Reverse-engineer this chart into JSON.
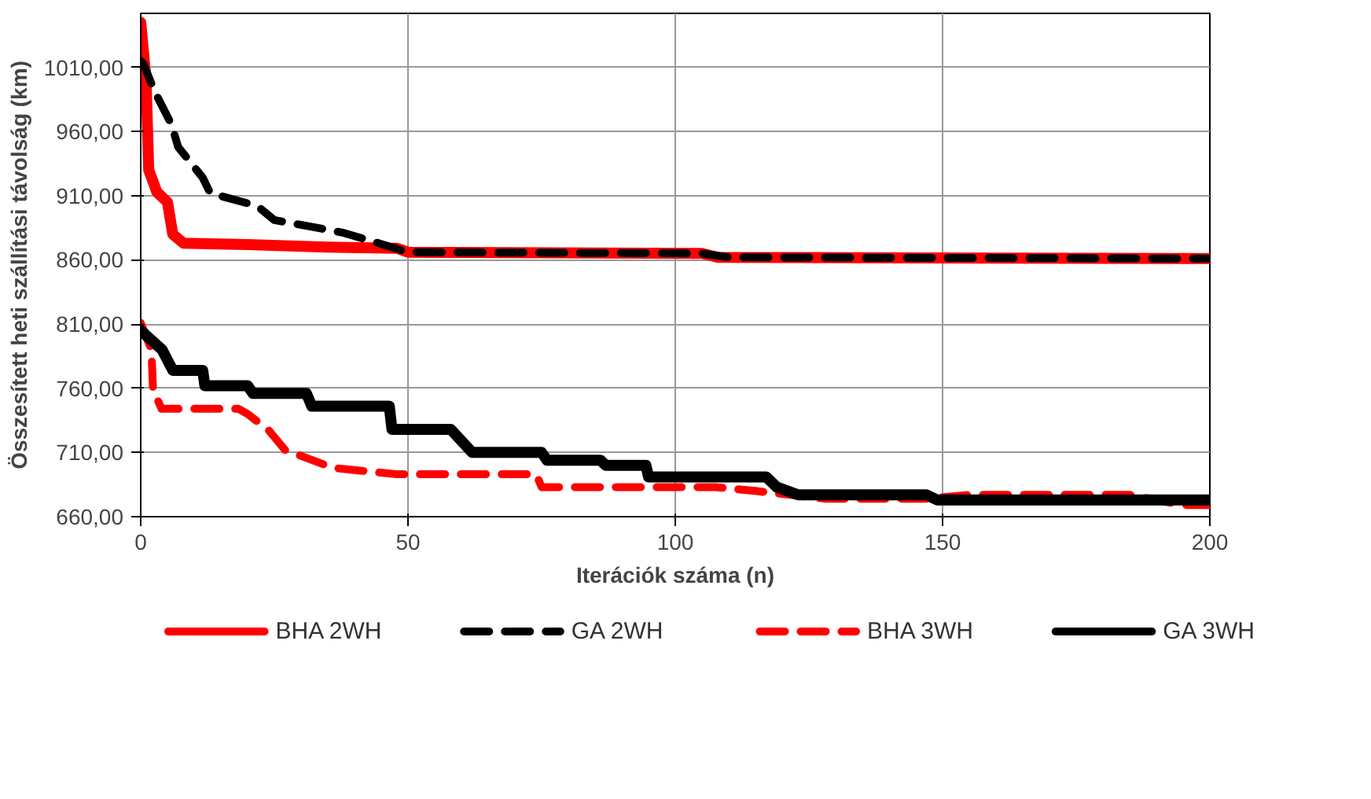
{
  "chart_data": {
    "type": "line",
    "xlabel": "Iterációk száma (n)",
    "ylabel": "Összesített heti szállítási távolság (km)",
    "xlim": [
      0,
      200
    ],
    "xticks": [
      0,
      50,
      100,
      150,
      200
    ],
    "ylim": [
      660,
      1052
    ],
    "yticks": [
      {
        "value": 660,
        "label": "660,00"
      },
      {
        "value": 710,
        "label": "710,00"
      },
      {
        "value": 760,
        "label": "760,00"
      },
      {
        "value": 810,
        "label": "810,00"
      },
      {
        "value": 860,
        "label": "860,00"
      },
      {
        "value": 910,
        "label": "910,00"
      },
      {
        "value": 960,
        "label": "960,00"
      },
      {
        "value": 1010,
        "label": "1010,00"
      }
    ],
    "grid": true,
    "legend": "bottom",
    "marker": "none",
    "series": [
      {
        "name": "BHA 2WH",
        "color": "#ff0000",
        "line_style": "solid",
        "x": [
          0,
          1,
          1.5,
          3,
          5,
          6,
          8,
          20,
          35,
          48,
          50,
          105,
          108,
          200
        ],
        "values": [
          1045,
          1000,
          930,
          913,
          905,
          880,
          873,
          872,
          870,
          869,
          866,
          865,
          862,
          861
        ]
      },
      {
        "name": "GA 2WH",
        "color": "#000000",
        "line_style": "dashed",
        "x": [
          0,
          0.6,
          2.5,
          5.8,
          7,
          11.6,
          13,
          21.8,
          25,
          33,
          38,
          44.5,
          50,
          105,
          110,
          200
        ],
        "values": [
          1015,
          1012,
          992,
          965,
          948,
          924,
          912,
          902,
          891,
          885,
          881,
          873,
          866,
          865,
          862,
          861
        ]
      },
      {
        "name": "BHA 3WH",
        "color": "#ff0000",
        "line_style": "dashed",
        "x": [
          0,
          2,
          2.3,
          3.9,
          18.3,
          20,
          24,
          27,
          36,
          40.7,
          48,
          74,
          75,
          107.6,
          115,
          128,
          147,
          155,
          185,
          195,
          200
        ],
        "values": [
          811,
          790,
          759,
          744,
          744,
          740,
          727,
          712,
          698,
          696,
          693,
          693,
          683,
          683,
          680,
          674,
          674,
          677,
          677,
          669,
          669
        ]
      },
      {
        "name": "GA 3WH",
        "color": "#000000",
        "line_style": "solid",
        "x": [
          0,
          4,
          6,
          11.6,
          12,
          20,
          21,
          31,
          32,
          46.5,
          47,
          58,
          62,
          75,
          76,
          86,
          87,
          94.5,
          95,
          117,
          119,
          123,
          147,
          149,
          200
        ],
        "values": [
          805,
          790,
          774,
          774,
          762,
          762,
          756,
          756,
          746,
          746,
          728,
          728,
          710,
          710,
          704,
          704,
          700,
          700,
          691,
          691,
          683,
          677,
          677,
          673,
          673
        ]
      }
    ]
  }
}
